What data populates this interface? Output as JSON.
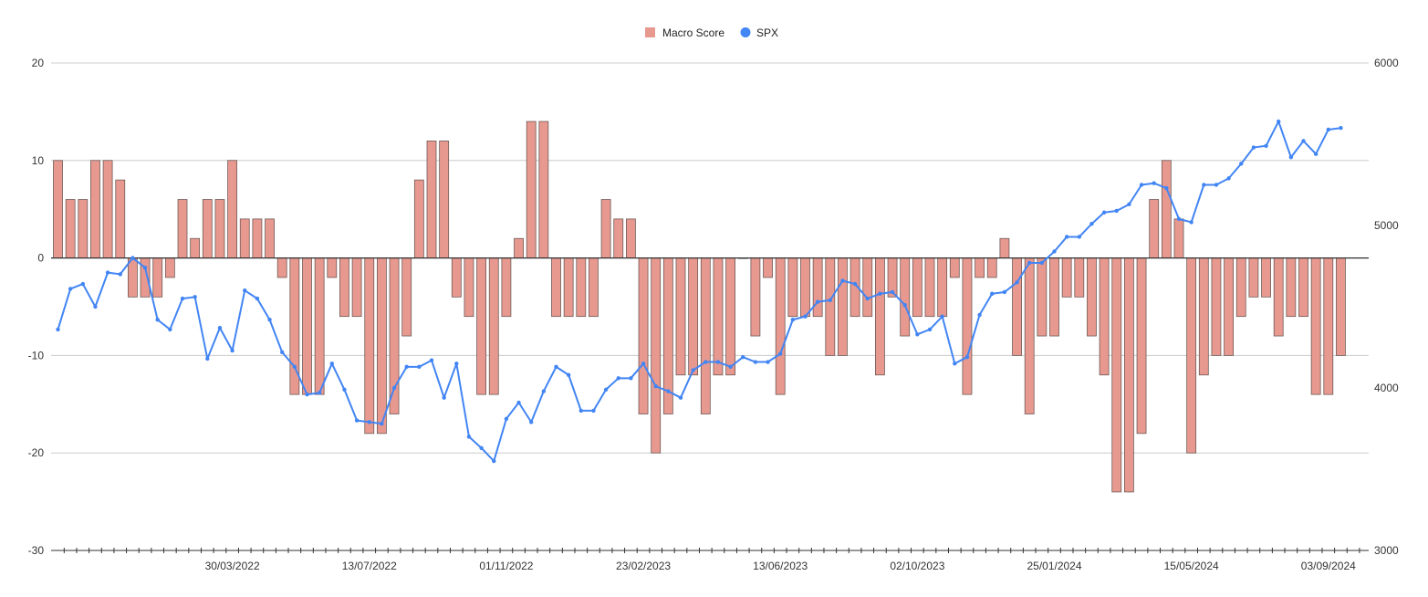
{
  "chart_data": {
    "type": "bar+line",
    "legend_position": "top-center",
    "grid": true,
    "legend": [
      {
        "name": "Macro Score",
        "color": "#e8998f",
        "marker": "square"
      },
      {
        "name": "SPX",
        "color": "#4285f4",
        "marker": "circle"
      }
    ],
    "y_left": {
      "min": -30,
      "max": 20,
      "ticks": [
        -30,
        -20,
        -10,
        0,
        10,
        20
      ]
    },
    "y_right": {
      "min": 3000,
      "max": 6000,
      "ticks": [
        3000,
        4000,
        5000,
        6000
      ]
    },
    "x_labels": [
      "30/03/2022",
      "13/07/2022",
      "01/11/2022",
      "23/02/2023",
      "13/06/2023",
      "02/10/2023",
      "25/01/2024",
      "15/05/2024",
      "03/09/2024"
    ],
    "x_label_positions": [
      14,
      25,
      36,
      47,
      58,
      69,
      80,
      91,
      102
    ],
    "series": [
      {
        "name": "Macro Score",
        "axis": "left",
        "type": "bar",
        "color": "#e8998f",
        "values": [
          10,
          6,
          6,
          10,
          10,
          8,
          -4,
          -4,
          -4,
          -2,
          6,
          2,
          6,
          6,
          10,
          4,
          4,
          4,
          -2,
          -14,
          -14,
          -14,
          -2,
          -6,
          -6,
          -18,
          -18,
          -16,
          -8,
          8,
          12,
          12,
          -4,
          -6,
          -14,
          -14,
          -6,
          2,
          14,
          14,
          -6,
          -6,
          -6,
          -6,
          6,
          4,
          4,
          -16,
          -20,
          -16,
          -12,
          -12,
          -16,
          -12,
          -12,
          0,
          -8,
          -2,
          -14,
          -6,
          -6,
          -6,
          -10,
          -10,
          -6,
          -6,
          -12,
          -4,
          -8,
          -6,
          -6,
          -6,
          -2,
          -14,
          -2,
          -2,
          2,
          -10,
          -16,
          -8,
          -8,
          -4,
          -4,
          -8,
          -12,
          -24,
          -24,
          -18,
          6,
          10,
          4,
          -20,
          -12,
          -10,
          -10,
          -6,
          -4,
          -4,
          -8,
          -6,
          -6,
          -14,
          -14,
          -10
        ]
      },
      {
        "name": "SPX",
        "axis": "right",
        "type": "line",
        "color": "#4285f4",
        "values": [
          4360,
          4610,
          4640,
          4500,
          4710,
          4700,
          4800,
          4740,
          4420,
          4360,
          4550,
          4560,
          4180,
          4370,
          4230,
          4600,
          4550,
          4420,
          4220,
          4130,
          3960,
          3970,
          4150,
          3990,
          3800,
          3790,
          3780,
          4000,
          4130,
          4130,
          4170,
          3940,
          4150,
          3700,
          3630,
          3550,
          3810,
          3910,
          3790,
          3980,
          4130,
          4080,
          3860,
          3860,
          3990,
          4060,
          4060,
          4150,
          4010,
          3980,
          3940,
          4110,
          4160,
          4160,
          4130,
          4190,
          4160,
          4160,
          4210,
          4420,
          4440,
          4530,
          4540,
          4660,
          4640,
          4550,
          4580,
          4590,
          4510,
          4330,
          4360,
          4440,
          4150,
          4190,
          4450,
          4580,
          4590,
          4650,
          4770,
          4770,
          4840,
          4930,
          4930,
          5010,
          5080,
          5090,
          5130,
          5250,
          5260,
          5230,
          5040,
          5020,
          5250,
          5250,
          5290,
          5380,
          5480,
          5490,
          5640,
          5420,
          5520,
          5440,
          5590,
          5600
        ]
      }
    ]
  }
}
